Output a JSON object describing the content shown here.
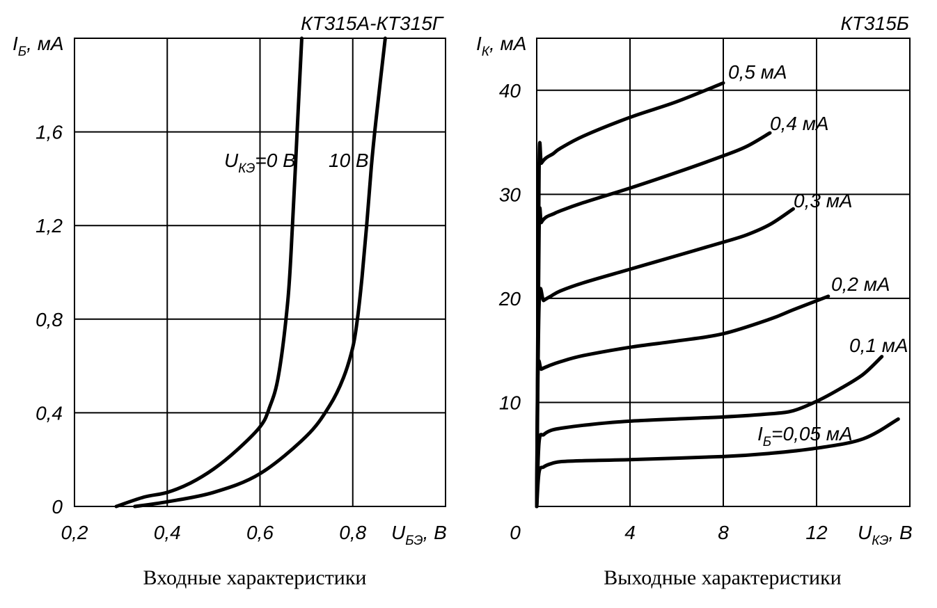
{
  "chart_data": [
    {
      "type": "line",
      "title": "КТ315А-КТ315Г",
      "caption": "Входные характеристики",
      "xlabel": {
        "main": "U",
        "sub": "БЭ",
        "unit": ", В"
      },
      "ylabel": {
        "main": "I",
        "sub": "Б",
        "unit": ", мА"
      },
      "xlim": [
        0.2,
        1.0
      ],
      "ylim": [
        0,
        2.0
      ],
      "grid": true,
      "x_ticks": [
        {
          "value": 0.2,
          "label": "0,2"
        },
        {
          "value": 0.4,
          "label": "0,4"
        },
        {
          "value": 0.6,
          "label": "0,6"
        },
        {
          "value": 0.8,
          "label": "0,8"
        }
      ],
      "y_ticks": [
        {
          "value": 0,
          "label": "0"
        },
        {
          "value": 0.4,
          "label": "0,4"
        },
        {
          "value": 0.8,
          "label": "0,8"
        },
        {
          "value": 1.2,
          "label": "1,2"
        },
        {
          "value": 1.6,
          "label": "1,6"
        }
      ],
      "series": [
        {
          "name": "U_КЭ=0 В",
          "label_main": "U",
          "label_sub": "КЭ",
          "label_rest": "=0 В",
          "x": [
            0.29,
            0.35,
            0.4,
            0.45,
            0.5,
            0.55,
            0.6,
            0.62,
            0.64,
            0.66,
            0.67,
            0.68,
            0.69
          ],
          "y": [
            0.0,
            0.04,
            0.06,
            0.1,
            0.16,
            0.24,
            0.34,
            0.42,
            0.56,
            0.88,
            1.2,
            1.6,
            2.0
          ]
        },
        {
          "name": "10 В",
          "label_main": "10 В",
          "x": [
            0.33,
            0.4,
            0.5,
            0.6,
            0.7,
            0.75,
            0.78,
            0.8,
            0.81,
            0.82,
            0.83,
            0.84,
            0.85,
            0.87
          ],
          "y": [
            0.0,
            0.02,
            0.06,
            0.14,
            0.3,
            0.43,
            0.55,
            0.68,
            0.8,
            0.98,
            1.2,
            1.45,
            1.65,
            2.0
          ]
        }
      ]
    },
    {
      "type": "line",
      "title": "КТ315Б",
      "caption": "Выходные характеристики",
      "xlabel": {
        "main": "U",
        "sub": "КЭ",
        "unit": ", В"
      },
      "ylabel": {
        "main": "I",
        "sub": "К",
        "unit": ", мА"
      },
      "xlim": [
        0,
        16
      ],
      "ylim": [
        0,
        45
      ],
      "grid": true,
      "x_ticks": [
        {
          "value": 0,
          "label": "0"
        },
        {
          "value": 4,
          "label": "4"
        },
        {
          "value": 8,
          "label": "8"
        },
        {
          "value": 12,
          "label": "12"
        }
      ],
      "y_ticks": [
        {
          "value": 10,
          "label": "10"
        },
        {
          "value": 20,
          "label": "20"
        },
        {
          "value": 30,
          "label": "30"
        },
        {
          "value": 40,
          "label": "40"
        }
      ],
      "series": [
        {
          "name": "I_Б=0,05 мА",
          "label_main": "I",
          "label_sub": "Б",
          "label_rest": "=0,05 мА",
          "x": [
            0,
            0.1,
            0.3,
            0.6,
            1,
            2,
            4,
            8,
            10,
            12,
            14,
            15.5
          ],
          "y": [
            0,
            3.3,
            3.8,
            4.1,
            4.3,
            4.4,
            4.5,
            4.8,
            5.1,
            5.6,
            6.5,
            8.4
          ]
        },
        {
          "name": "0,1 мА",
          "label_main": "0,1 мА",
          "x": [
            0,
            0.1,
            0.3,
            0.6,
            1,
            2,
            4,
            8,
            10,
            11,
            12,
            13,
            14,
            14.8
          ],
          "y": [
            0,
            6.2,
            6.9,
            7.3,
            7.5,
            7.8,
            8.2,
            8.6,
            8.9,
            9.2,
            10.1,
            11.3,
            12.7,
            14.4
          ]
        },
        {
          "name": "0,2 мА",
          "label_main": "0,2 мА",
          "x": [
            0,
            0.05,
            0.2,
            0.5,
            1,
            2,
            4,
            6,
            8,
            10,
            11,
            12.5
          ],
          "y": [
            0,
            13.0,
            13.2,
            13.5,
            13.9,
            14.5,
            15.3,
            15.9,
            16.6,
            18.0,
            18.9,
            20.2
          ]
        },
        {
          "name": "0,3 мА",
          "label_main": "0,3 мА",
          "x": [
            0,
            0.1,
            0.3,
            0.6,
            1,
            2,
            4,
            6,
            8,
            9,
            10,
            11
          ],
          "y": [
            0,
            19.4,
            19.8,
            20.2,
            20.7,
            21.5,
            22.8,
            24.1,
            25.4,
            26.1,
            27.1,
            28.6
          ]
        },
        {
          "name": "0,4 мА",
          "label_main": "0,4 мА",
          "x": [
            0,
            0.1,
            0.2,
            0.4,
            0.7,
            1,
            2,
            4,
            6,
            8,
            9,
            10
          ],
          "y": [
            0,
            26.5,
            27.3,
            27.8,
            28.1,
            28.4,
            29.2,
            30.6,
            32.1,
            33.7,
            34.6,
            35.9
          ]
        },
        {
          "name": "0,5 мА",
          "label_main": "0,5 мА",
          "x": [
            0,
            0.1,
            0.2,
            0.4,
            0.7,
            1,
            2,
            4,
            6,
            8
          ],
          "y": [
            0,
            32.4,
            33.0,
            33.5,
            33.9,
            34.4,
            35.6,
            37.4,
            38.9,
            40.7
          ]
        }
      ]
    }
  ]
}
